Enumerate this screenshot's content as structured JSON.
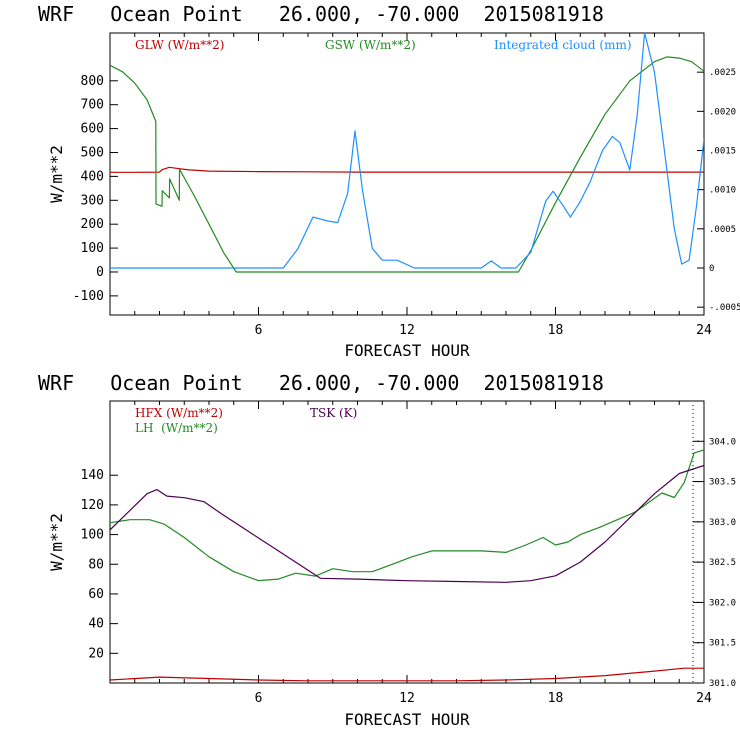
{
  "chart_data": [
    {
      "type": "line",
      "title": "WRF   Ocean Point   26.000, -70.000  2015081918",
      "xlabel": "FORECAST HOUR",
      "ylabel": "W/m**2",
      "xlim": [
        0,
        24
      ],
      "ylim": [
        -180,
        1000
      ],
      "x_ticks": [
        6,
        12,
        18,
        24
      ],
      "y_ticks": [
        -100,
        0,
        100,
        200,
        300,
        400,
        500,
        600,
        700,
        800
      ],
      "right_axis": {
        "ylim": [
          -0.0006,
          0.003
        ],
        "ticks": [
          -0.0005,
          0,
          0.0005,
          0.001,
          0.0015,
          0.002,
          0.0025
        ],
        "tick_labels": [
          "-.0005",
          "0",
          ".0005",
          ".0010",
          ".0015",
          ".0020",
          ".0025"
        ]
      },
      "series": [
        {
          "name": "GLW (W/m**2)",
          "color": "#c00000",
          "axis": "left",
          "x": [
            0,
            1,
            2,
            2.1,
            2.4,
            2.8,
            3.2,
            4,
            6,
            8,
            10,
            12,
            14,
            16,
            18,
            20,
            22,
            24
          ],
          "y": [
            417,
            417,
            418,
            428,
            438,
            432,
            427,
            422,
            420,
            419,
            418,
            418,
            418,
            418,
            418,
            418,
            418,
            418
          ]
        },
        {
          "name": "GSW (W/m**2)",
          "color": "#228b22",
          "axis": "left",
          "x": [
            0,
            0.5,
            1,
            1.5,
            1.85,
            1.86,
            2.1,
            2.11,
            2.4,
            2.41,
            2.8,
            2.81,
            3.4,
            4,
            4.6,
            5.1,
            6,
            10,
            14,
            16.5,
            17,
            18,
            19,
            20,
            21,
            22,
            22.5,
            23,
            23.5,
            24
          ],
          "y": [
            865,
            838,
            790,
            720,
            630,
            285,
            275,
            340,
            310,
            390,
            300,
            430,
            320,
            200,
            80,
            0,
            0,
            0,
            0,
            0,
            90,
            290,
            480,
            660,
            800,
            880,
            900,
            895,
            880,
            840
          ]
        },
        {
          "name": "Integrated cloud (mm)",
          "color": "#1e90ff",
          "axis": "right",
          "x": [
            0,
            7,
            7.6,
            8.2,
            8.8,
            9.2,
            9.6,
            9.9,
            10.2,
            10.6,
            11,
            11.6,
            12.3,
            15,
            15.4,
            15.8,
            16.4,
            17,
            17.6,
            17.9,
            18.3,
            18.6,
            19,
            19.4,
            19.9,
            20.3,
            20.6,
            21.0,
            21.3,
            21.6,
            22.0,
            22.4,
            22.8,
            23.1,
            23.4,
            23.7,
            24
          ],
          "y": [
            0,
            0,
            0.00025,
            0.00065,
            0.0006,
            0.00058,
            0.00095,
            0.00175,
            0.001,
            0.00025,
            0.0001,
            0.0001,
            0.0,
            0.0,
            9e-05,
            0.0,
            0.0,
            0.0002,
            0.00085,
            0.00098,
            0.0008,
            0.00065,
            0.00085,
            0.0011,
            0.0015,
            0.00168,
            0.0016,
            0.00125,
            0.00195,
            0.003,
            0.0025,
            0.0015,
            0.0005,
            5e-05,
            0.0001,
            0.0008,
            0.00165
          ]
        }
      ]
    },
    {
      "type": "line",
      "title": "WRF   Ocean Point   26.000, -70.000  2015081918",
      "xlabel": "FORECAST HOUR",
      "ylabel": "W/m**2",
      "xlim": [
        0,
        24
      ],
      "ylim": [
        0,
        190
      ],
      "x_ticks": [
        6,
        12,
        18,
        24
      ],
      "y_ticks": [
        20,
        40,
        60,
        80,
        100,
        120,
        140
      ],
      "right_axis": {
        "ylim": [
          301.0,
          304.5
        ],
        "ticks": [
          301.0,
          301.5,
          302.0,
          302.5,
          303.0,
          303.5,
          304.0
        ],
        "tick_labels": [
          "301.0",
          "301.5",
          "302.0",
          "302.5",
          "303.0",
          "303.5",
          "304.0"
        ]
      },
      "series": [
        {
          "name": "HFX (W/m**2)",
          "color": "#c00000",
          "axis": "left",
          "x": [
            0,
            2,
            4,
            6,
            8,
            10,
            12,
            14,
            16,
            18,
            20,
            22,
            23.2,
            24
          ],
          "y": [
            2,
            4,
            3,
            2,
            1.5,
            1.5,
            1.5,
            1.5,
            2,
            3,
            5,
            8,
            10,
            10
          ]
        },
        {
          "name": "LH  (W/m**2)",
          "color": "#228b22",
          "axis": "left",
          "x": [
            0,
            0.8,
            1.6,
            2.2,
            3,
            4,
            5,
            6,
            6.8,
            7.5,
            8.3,
            9,
            9.8,
            10.6,
            11.4,
            12.2,
            13,
            14,
            15,
            16,
            16.8,
            17.5,
            18,
            18.5,
            19,
            19.8,
            20.5,
            21.2,
            21.8,
            22.3,
            22.8,
            23.2,
            23.6,
            24
          ],
          "y": [
            108,
            110,
            110,
            107,
            98,
            85,
            75,
            69,
            70,
            74,
            72,
            77,
            75,
            75,
            80,
            85,
            89,
            89,
            89,
            88,
            93,
            98,
            93,
            95,
            100,
            105,
            110,
            115,
            122,
            128,
            125,
            135,
            155,
            157
          ]
        },
        {
          "name": "TSK (K)",
          "color": "#4b0050",
          "axis": "right",
          "x": [
            0,
            0.5,
            1,
            1.5,
            1.9,
            2.3,
            3,
            3.8,
            4.5,
            5.5,
            6.5,
            7.5,
            8.5,
            10,
            12,
            14,
            16,
            17,
            18,
            19,
            20,
            21,
            22,
            23,
            23.5,
            24
          ],
          "y": [
            302.9,
            303.05,
            303.2,
            303.35,
            303.4,
            303.32,
            303.3,
            303.25,
            303.1,
            302.9,
            302.7,
            302.5,
            302.3,
            302.29,
            302.27,
            302.26,
            302.25,
            302.27,
            302.33,
            302.5,
            302.75,
            303.05,
            303.35,
            303.6,
            303.65,
            303.7
          ]
        }
      ]
    }
  ]
}
